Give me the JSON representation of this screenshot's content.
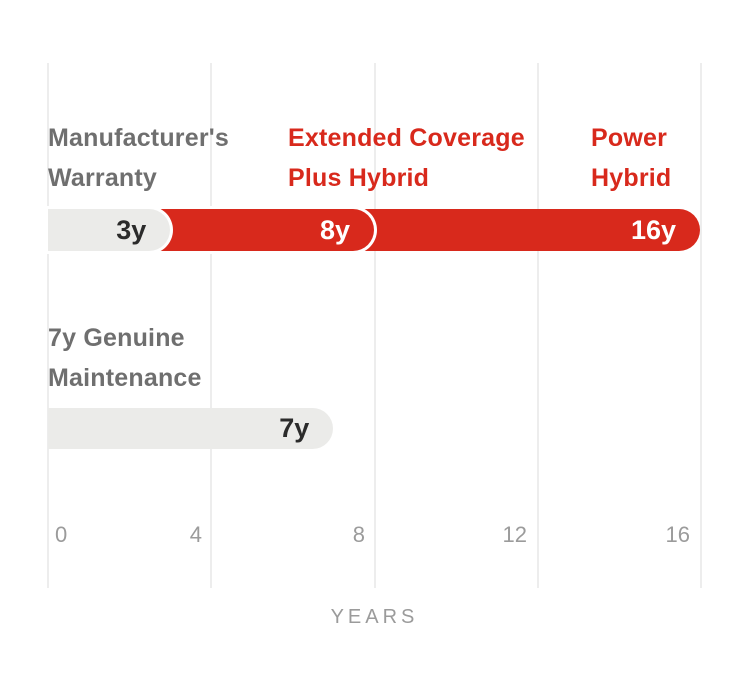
{
  "chart_data": {
    "type": "bar",
    "orientation": "horizontal",
    "title": "",
    "xlabel": "YEARS",
    "xlim": [
      0,
      16
    ],
    "x_ticks": [
      0,
      4,
      8,
      12,
      16
    ],
    "grid": "vertical",
    "series": [
      {
        "name": "Manufacturer's Warranty",
        "row": 0,
        "start": 0,
        "end": 3,
        "years": 3,
        "value_label": "3y",
        "color": "#ebebe9",
        "label_color": "#6f6f6f"
      },
      {
        "name": "Extended Coverage Plus Hybrid",
        "row": 0,
        "start": 0,
        "end": 8,
        "years": 8,
        "value_label": "8y",
        "color": "#d8291c",
        "label_color": "#d8291c"
      },
      {
        "name": "Power Hybrid",
        "row": 0,
        "start": 0,
        "end": 16,
        "years": 16,
        "value_label": "16y",
        "color": "#d8291c",
        "label_color": "#d8291c"
      },
      {
        "name": "7y Genuine Maintenance",
        "row": 1,
        "start": 0,
        "end": 7,
        "years": 7,
        "value_label": "7y",
        "color": "#ebebe9",
        "label_color": "#6f6f6f"
      }
    ]
  },
  "labels": {
    "manufacturers_line1": "Manufacturer's",
    "manufacturers_line2": "Warranty",
    "extended_line1": "Extended Coverage",
    "extended_line2": "Plus Hybrid",
    "power_line1": "Power",
    "power_line2": "Hybrid",
    "maintenance_line1": "7y Genuine",
    "maintenance_line2": "Maintenance"
  },
  "axis": {
    "tick_labels": [
      "0",
      "4",
      "8",
      "12",
      "16"
    ],
    "title": "YEARS"
  },
  "colors": {
    "accent_red": "#d8291c",
    "bar_gray": "#ebebe9",
    "gridline": "#ededed",
    "heading_gray": "#6f6f6f",
    "axis_gray": "#9b9b9b",
    "bar_text_dark": "#2b2b2b",
    "bar_text_light": "#ffffff"
  }
}
